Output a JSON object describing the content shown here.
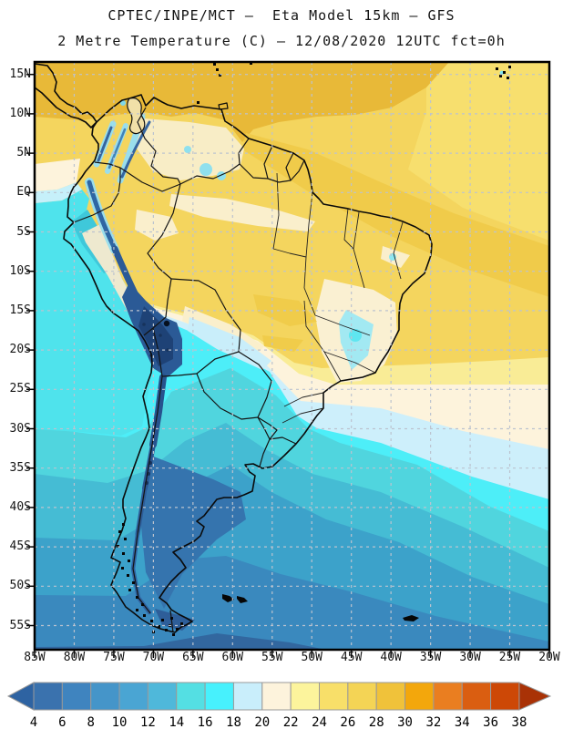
{
  "title": {
    "line1": "CPTEC/INPE/MCT –  Eta Model 15km – GFS",
    "line2": "2 Metre Temperature (C) – 12/08/2020 12UTC fct=0h"
  },
  "map": {
    "lat_labels": [
      "15N",
      "10N",
      "5N",
      "EQ",
      "5S",
      "10S",
      "15S",
      "20S",
      "25S",
      "30S",
      "35S",
      "40S",
      "45S",
      "50S",
      "55S"
    ],
    "lon_labels": [
      "85W",
      "80W",
      "75W",
      "70W",
      "65W",
      "60W",
      "55W",
      "50W",
      "45W",
      "40W",
      "35W",
      "30W",
      "25W",
      "20W"
    ]
  },
  "colorbar": {
    "tick_labels": [
      "4",
      "6",
      "8",
      "10",
      "12",
      "14",
      "16",
      "18",
      "20",
      "22",
      "24",
      "26",
      "28",
      "30",
      "32",
      "34",
      "36",
      "38"
    ],
    "colors": [
      "#3a72ae",
      "#3f84bf",
      "#4595c9",
      "#4aa5d3",
      "#4fb8da",
      "#54dfe3",
      "#47f1fd",
      "#c9eefb",
      "#fdf3dc",
      "#fcf49c",
      "#f8df69",
      "#f4d455",
      "#f0c23a",
      "#f3a70c",
      "#ea7e20",
      "#da5e11",
      "#cd4806"
    ],
    "arrow_left_color": "#2e63a2",
    "arrow_right_color": "#a93206",
    "outline_color": "#999999"
  },
  "grid": {
    "line_color": "#bcc3cf",
    "frame_color": "#000000"
  }
}
